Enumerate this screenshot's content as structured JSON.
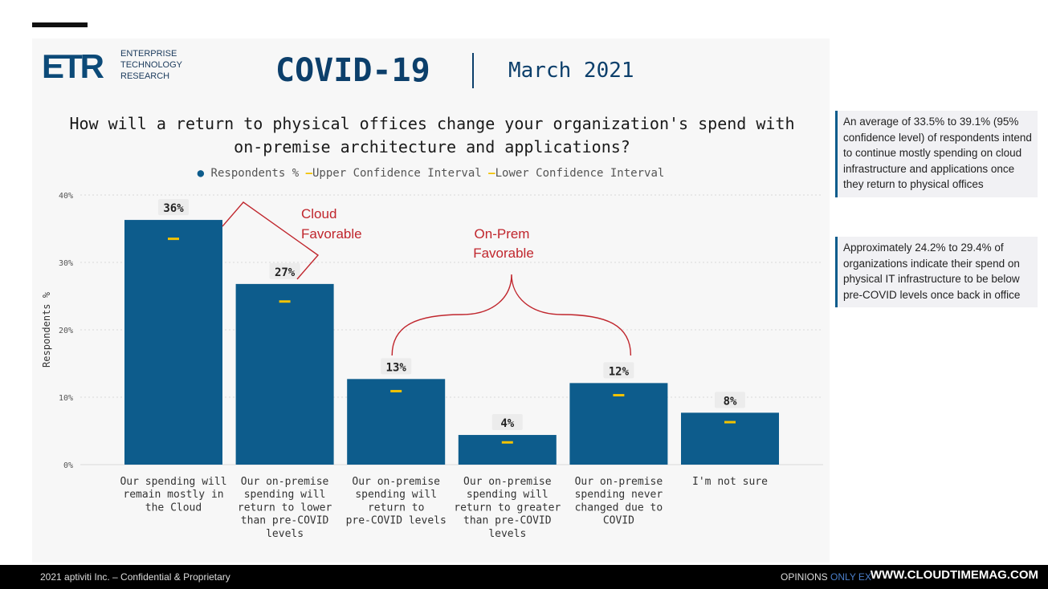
{
  "header": {
    "logo_mark": "ETR",
    "logo_lines": [
      "ENTERPRISE",
      "TECHNOLOGY",
      "RESEARCH"
    ],
    "title": "COVID-19",
    "date": "March 2021"
  },
  "question_lines": [
    "How will a return to physical offices change your organization's spend with",
    "on-premise architecture and applications?"
  ],
  "legend": {
    "respondents": "Respondents %",
    "upper": "Upper Confidence Interval",
    "lower": "Lower Confidence Interval"
  },
  "chart_data": {
    "type": "bar",
    "ylabel": "Respondents %",
    "ylim": [
      0,
      40
    ],
    "yticks": [
      "0%",
      "10%",
      "20%",
      "30%",
      "40%"
    ],
    "yticks_values": [
      0,
      10,
      20,
      30,
      40
    ],
    "categories": [
      [
        "Our spending will",
        "remain mostly in",
        "the Cloud"
      ],
      [
        "Our on-premise",
        "spending will",
        "return to lower",
        "than pre-COVID",
        "levels"
      ],
      [
        "Our on-premise",
        "spending will",
        "return to",
        "pre-COVID levels"
      ],
      [
        "Our on-premise",
        "spending will",
        "return to greater",
        "than pre-COVID",
        "levels"
      ],
      [
        "Our on-premise",
        "spending never",
        "changed due to",
        "COVID"
      ],
      [
        "I'm not sure"
      ]
    ],
    "series": [
      {
        "name": "Respondents %",
        "values": [
          36.3,
          26.8,
          12.7,
          4.4,
          12.1,
          7.7
        ],
        "labels": [
          "36%",
          "27%",
          "13%",
          "4%",
          "12%",
          "8%"
        ]
      },
      {
        "name": "Lower Confidence Interval",
        "values": [
          33.5,
          24.2,
          10.9,
          3.3,
          10.3,
          6.3
        ]
      }
    ],
    "colors": {
      "bar": "#0d5c8c",
      "lower": "#f2c200",
      "annotation": "#c0262d",
      "grid": "#d8d8d8"
    },
    "annotations": [
      {
        "lines": [
          "Cloud",
          "Favorable"
        ]
      },
      {
        "lines": [
          "On-Prem",
          "Favorable"
        ]
      }
    ]
  },
  "notes": [
    "An average of 33.5% to 39.1% (95% confidence level) of respondents intend to continue mostly spending on cloud infrastructure and applications once they return to physical offices",
    "Approximately 24.2% to 29.4% of organizations indicate their spend on physical IT infrastructure to be below pre-COVID levels once back in office"
  ],
  "footer": {
    "left": "2021 aptiviti Inc. – Confidential & Proprietary",
    "right_prefix": "OPINIONS",
    "right_blue": "ONLY EX",
    "url": "WWW.CLOUDTIMEMAG.COM"
  }
}
